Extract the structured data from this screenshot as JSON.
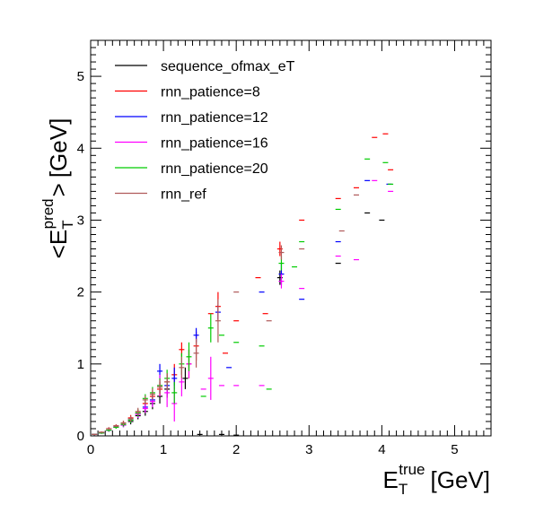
{
  "chart_data": {
    "type": "scatter",
    "title": "",
    "xlabel": {
      "base": "E",
      "sub": "T",
      "sup": "true",
      "unit": "[GeV]"
    },
    "ylabel": {
      "prefix": "<",
      "base": "E",
      "sub": "T",
      "sup": "pred",
      "suffix": ">",
      "unit": "[GeV]"
    },
    "xlim": [
      0,
      5.5
    ],
    "ylim": [
      0,
      5.5
    ],
    "x_ticks": [
      0,
      1,
      2,
      3,
      4,
      5
    ],
    "y_ticks": [
      0,
      1,
      2,
      3,
      4,
      5
    ],
    "grid": false,
    "legend_position": "top-left",
    "series": [
      {
        "name": "sequence_ofmax_eT",
        "color": "#000000",
        "points": [
          [
            0.05,
            0.02,
            0.01
          ],
          [
            0.15,
            0.04,
            0.01
          ],
          [
            0.25,
            0.08,
            0.02
          ],
          [
            0.35,
            0.12,
            0.02
          ],
          [
            0.45,
            0.16,
            0.03
          ],
          [
            0.55,
            0.2,
            0.04
          ],
          [
            0.65,
            0.28,
            0.05
          ],
          [
            0.75,
            0.34,
            0.06
          ],
          [
            0.85,
            0.45,
            0.08
          ],
          [
            0.95,
            0.55,
            0.1
          ],
          [
            1.05,
            0.65,
            0.12
          ],
          [
            1.3,
            0.8,
            0.15
          ],
          [
            1.5,
            0.02,
            0
          ],
          [
            1.8,
            0.02,
            0
          ],
          [
            2.0,
            0.01,
            0
          ],
          [
            2.6,
            2.2,
            0.1
          ],
          [
            3.4,
            2.4,
            0
          ],
          [
            3.8,
            3.1,
            0
          ],
          [
            4.0,
            3.0,
            0
          ]
        ]
      },
      {
        "name": "rnn_patience=8",
        "color": "#ff0000",
        "points": [
          [
            0.05,
            0.02,
            0.01
          ],
          [
            0.15,
            0.05,
            0.01
          ],
          [
            0.25,
            0.1,
            0.02
          ],
          [
            0.35,
            0.14,
            0.02
          ],
          [
            0.45,
            0.18,
            0.03
          ],
          [
            0.55,
            0.25,
            0.04
          ],
          [
            0.65,
            0.32,
            0.05
          ],
          [
            0.75,
            0.45,
            0.06
          ],
          [
            0.85,
            0.55,
            0.08
          ],
          [
            0.95,
            0.65,
            0.1
          ],
          [
            1.05,
            0.75,
            0.12
          ],
          [
            1.15,
            0.85,
            0.15
          ],
          [
            1.25,
            1.2,
            0.1
          ],
          [
            1.35,
            1.0,
            0.2
          ],
          [
            1.45,
            1.25,
            0.2
          ],
          [
            1.65,
            1.7,
            0
          ],
          [
            1.75,
            1.8,
            0.2
          ],
          [
            1.85,
            1.15,
            0
          ],
          [
            2.0,
            1.6,
            0
          ],
          [
            2.3,
            2.2,
            0
          ],
          [
            2.4,
            1.7,
            0
          ],
          [
            2.6,
            2.6,
            0.1
          ],
          [
            2.9,
            3.0,
            0
          ],
          [
            3.4,
            3.3,
            0
          ],
          [
            3.65,
            3.45,
            0
          ],
          [
            3.9,
            4.15,
            0
          ],
          [
            4.05,
            4.2,
            0
          ],
          [
            4.12,
            3.7,
            0
          ]
        ]
      },
      {
        "name": "rnn_patience=12",
        "color": "#0000ff",
        "points": [
          [
            0.05,
            0.02,
            0.01
          ],
          [
            0.15,
            0.04,
            0.01
          ],
          [
            0.25,
            0.08,
            0.02
          ],
          [
            0.35,
            0.12,
            0.02
          ],
          [
            0.45,
            0.15,
            0.03
          ],
          [
            0.55,
            0.22,
            0.04
          ],
          [
            0.65,
            0.3,
            0.05
          ],
          [
            0.75,
            0.4,
            0.06
          ],
          [
            0.85,
            0.5,
            0.08
          ],
          [
            0.95,
            0.9,
            0.1
          ],
          [
            1.05,
            0.7,
            0.12
          ],
          [
            1.15,
            0.8,
            0.15
          ],
          [
            1.45,
            1.4,
            0.1
          ],
          [
            1.75,
            1.72,
            0.1
          ],
          [
            1.9,
            0.95,
            0
          ],
          [
            2.35,
            2.0,
            0
          ],
          [
            2.62,
            2.25,
            0.15
          ],
          [
            2.9,
            1.9,
            0
          ],
          [
            3.4,
            2.7,
            0
          ],
          [
            3.8,
            3.55,
            0
          ],
          [
            4.1,
            3.5,
            0
          ]
        ]
      },
      {
        "name": "rnn_patience=16",
        "color": "#ff00ff",
        "points": [
          [
            0.05,
            0.02,
            0.01
          ],
          [
            0.15,
            0.04,
            0.01
          ],
          [
            0.25,
            0.08,
            0.02
          ],
          [
            0.35,
            0.12,
            0.02
          ],
          [
            0.45,
            0.15,
            0.03
          ],
          [
            0.55,
            0.22,
            0.04
          ],
          [
            0.65,
            0.3,
            0.05
          ],
          [
            0.75,
            0.38,
            0.06
          ],
          [
            0.85,
            0.48,
            0.08
          ],
          [
            0.95,
            0.7,
            0.15
          ],
          [
            1.05,
            0.6,
            0.2
          ],
          [
            1.15,
            0.45,
            0.25
          ],
          [
            1.25,
            0.75,
            0.2
          ],
          [
            1.35,
            1.0,
            0.2
          ],
          [
            1.55,
            0.65,
            0
          ],
          [
            1.65,
            0.8,
            0.3
          ],
          [
            1.8,
            0.7,
            0
          ],
          [
            2.0,
            0.7,
            0
          ],
          [
            2.35,
            0.7,
            0
          ],
          [
            2.62,
            2.15,
            0.1
          ],
          [
            2.9,
            2.05,
            0
          ],
          [
            3.4,
            2.5,
            0
          ],
          [
            3.65,
            2.45,
            0
          ],
          [
            3.9,
            3.55,
            0
          ],
          [
            4.12,
            3.4,
            0
          ]
        ]
      },
      {
        "name": "rnn_patience=20",
        "color": "#00cc00",
        "points": [
          [
            0.05,
            0.02,
            0.01
          ],
          [
            0.15,
            0.04,
            0.01
          ],
          [
            0.25,
            0.08,
            0.02
          ],
          [
            0.35,
            0.12,
            0.02
          ],
          [
            0.45,
            0.16,
            0.03
          ],
          [
            0.55,
            0.22,
            0.04
          ],
          [
            0.65,
            0.32,
            0.05
          ],
          [
            0.75,
            0.52,
            0.06
          ],
          [
            0.85,
            0.6,
            0.08
          ],
          [
            0.95,
            0.7,
            0.1
          ],
          [
            1.05,
            0.8,
            0.12
          ],
          [
            1.15,
            0.6,
            0.15
          ],
          [
            1.25,
            1.0,
            0.15
          ],
          [
            1.35,
            1.1,
            0.2
          ],
          [
            1.55,
            0.55,
            0
          ],
          [
            1.65,
            1.5,
            0.2
          ],
          [
            1.8,
            1.4,
            0
          ],
          [
            2.0,
            1.3,
            0
          ],
          [
            2.35,
            1.25,
            0
          ],
          [
            2.45,
            0.65,
            0
          ],
          [
            2.62,
            2.4,
            0.1
          ],
          [
            2.8,
            2.35,
            0
          ],
          [
            2.9,
            2.7,
            0
          ],
          [
            3.4,
            3.15,
            0
          ],
          [
            3.8,
            3.85,
            0
          ],
          [
            4.05,
            3.8,
            0
          ],
          [
            4.12,
            3.5,
            0
          ]
        ]
      },
      {
        "name": "rnn_ref",
        "color": "#b05a5a",
        "points": [
          [
            0.05,
            0.02,
            0.01
          ],
          [
            0.15,
            0.05,
            0.01
          ],
          [
            0.25,
            0.1,
            0.02
          ],
          [
            0.35,
            0.14,
            0.02
          ],
          [
            0.45,
            0.18,
            0.03
          ],
          [
            0.55,
            0.24,
            0.04
          ],
          [
            0.65,
            0.34,
            0.05
          ],
          [
            0.75,
            0.5,
            0.06
          ],
          [
            0.85,
            0.58,
            0.08
          ],
          [
            0.95,
            0.68,
            0.1
          ],
          [
            1.05,
            0.75,
            0.12
          ],
          [
            1.25,
            0.95,
            0.15
          ],
          [
            1.45,
            1.15,
            0.2
          ],
          [
            1.75,
            1.6,
            0.3
          ],
          [
            2.0,
            2.0,
            0
          ],
          [
            2.45,
            1.6,
            0
          ],
          [
            2.62,
            2.55,
            0.1
          ],
          [
            2.9,
            2.6,
            0
          ],
          [
            3.45,
            2.85,
            0
          ],
          [
            3.65,
            3.35,
            0
          ]
        ]
      }
    ]
  }
}
